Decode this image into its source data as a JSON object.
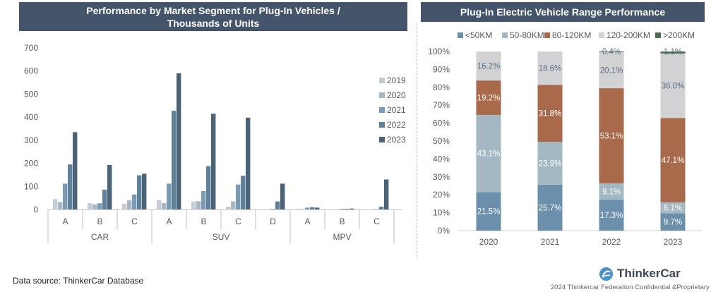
{
  "left": {
    "title_line1": "Performance by Market Segment for Plug-In Vehicles /",
    "title_line2": "Thousands of Units"
  },
  "right": {
    "title": "Plug-In Electric Vehicle Range Performance"
  },
  "source": "Data source: ThinkerCar Database",
  "logo": {
    "text": "ThinkerCar",
    "icon": "thinkercar-logo-icon"
  },
  "footer": "2024 Thinkercar Federation Confidential &Proprietary",
  "chart_data": [
    {
      "type": "bar",
      "title": "Performance by Market Segment for Plug-In Vehicles / Thousands of Units",
      "ylim": [
        0,
        700
      ],
      "yticks": [
        0,
        100,
        200,
        300,
        400,
        500,
        600,
        700
      ],
      "groups": [
        {
          "label": "CAR",
          "categories": [
            "A",
            "B",
            "C"
          ]
        },
        {
          "label": "SUV",
          "categories": [
            "A",
            "B",
            "C",
            "D"
          ]
        },
        {
          "label": "MPV",
          "categories": [
            "A",
            "B",
            "C"
          ]
        }
      ],
      "categories": [
        "CAR-A",
        "CAR-B",
        "CAR-C",
        "SUV-A",
        "SUV-B",
        "SUV-C",
        "SUV-D",
        "MPV-A",
        "MPV-B",
        "MPV-C"
      ],
      "legend_position": "right",
      "series": [
        {
          "name": "2019",
          "color": "#c5ccd6",
          "values": [
            45,
            28,
            25,
            40,
            35,
            12,
            0,
            3,
            1,
            1
          ]
        },
        {
          "name": "2020",
          "color": "#a9b6c4",
          "values": [
            32,
            22,
            40,
            28,
            36,
            35,
            0,
            2,
            1,
            1
          ]
        },
        {
          "name": "2021",
          "color": "#7a9bb3",
          "values": [
            112,
            27,
            65,
            112,
            80,
            108,
            3,
            8,
            3,
            2
          ]
        },
        {
          "name": "2022",
          "color": "#5f8199",
          "values": [
            195,
            86,
            148,
            428,
            188,
            146,
            35,
            10,
            3,
            12
          ]
        },
        {
          "name": "2023",
          "color": "#4b6377",
          "values": [
            335,
            193,
            155,
            590,
            415,
            398,
            112,
            8,
            4,
            130
          ]
        }
      ]
    },
    {
      "type": "bar",
      "stacked": "percent",
      "title": "Plug-In Electric Vehicle Range Performance",
      "categories": [
        "2020",
        "2021",
        "2022",
        "2023"
      ],
      "yticks": [
        "0%",
        "10%",
        "20%",
        "30%",
        "40%",
        "50%",
        "60%",
        "70%",
        "80%",
        "90%",
        "100%"
      ],
      "legend_position": "top",
      "series": [
        {
          "name": "<50KM",
          "color": "#6c8fac",
          "values": [
            21.5,
            25.7,
            17.3,
            9.7
          ],
          "labels": [
            "21.5%",
            "25.7%",
            "17.3%",
            "9.7%"
          ]
        },
        {
          "name": "50-80KM",
          "color": "#a3b8c2",
          "values": [
            43.1,
            23.9,
            9.1,
            6.1
          ],
          "labels": [
            "43.1%",
            "23.9%",
            "9.1%",
            "6.1%"
          ]
        },
        {
          "name": "80-120KM",
          "color": "#a86a4a",
          "values": [
            19.2,
            31.8,
            53.1,
            47.1
          ],
          "labels": [
            "19.2%",
            "31.8%",
            "53.1%",
            "47.1%"
          ]
        },
        {
          "name": "120-200KM",
          "color": "#d2d2d4",
          "values": [
            16.2,
            18.6,
            20.1,
            36.0
          ],
          "labels": [
            "16.2%",
            "18.6%",
            "20.1%",
            "36.0%"
          ]
        },
        {
          "name": ">200KM",
          "color": "#4d6f4f",
          "values": [
            0,
            0,
            0.4,
            1.1
          ],
          "labels": [
            "",
            "",
            "0.4%",
            "1.1%"
          ]
        }
      ]
    }
  ]
}
